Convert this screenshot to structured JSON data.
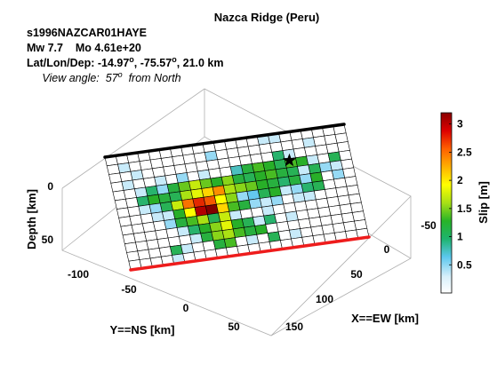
{
  "chart_data": {
    "type": "heatmap",
    "title": "Nazca Ridge (Peru)",
    "event_id": "s1996NAZCAR01HAYE",
    "magnitude_line": "Mw 7.7    Mo 4.61e+20",
    "location_prefix": "Lat/Lon/Dep: -14.97",
    "location_lon": ", -75.57",
    "location_dep": ", 21.0 km",
    "degree_mark": "o",
    "view_prefix": "View angle:  57",
    "view_suffix": "  from North",
    "xlabel": "X==EW [km]",
    "ylabel": "Y==NS [km]",
    "zlabel": "Depth [km]",
    "colorbar_label": "Slip [m]",
    "x_ticks": [
      "-50",
      "0",
      "50",
      "100",
      "150"
    ],
    "y_ticks": [
      "-100",
      "-50",
      "0",
      "50"
    ],
    "z_ticks": [
      "0",
      "50"
    ],
    "colorbar_ticks": [
      "0.5",
      "1",
      "1.5",
      "2",
      "2.5",
      "3"
    ],
    "colorbar_range": [
      0,
      3.2
    ],
    "grid_rows": 13,
    "grid_cols": 22,
    "slip": [
      [
        0,
        0,
        0,
        0,
        0,
        0,
        0,
        0,
        0,
        0,
        0,
        0,
        0,
        0,
        0.3,
        0.3,
        0,
        0,
        0,
        0,
        0,
        0
      ],
      [
        0,
        0.3,
        0,
        0,
        0,
        0,
        0,
        0,
        0,
        0.4,
        0,
        0,
        0,
        0,
        0,
        0,
        0,
        0,
        0.3,
        0,
        0,
        0
      ],
      [
        0,
        0,
        0.3,
        0,
        0,
        0,
        0,
        0,
        0,
        0,
        0,
        0,
        0,
        0,
        0,
        0.8,
        0.3,
        0,
        0,
        0,
        0,
        0
      ],
      [
        0,
        0.3,
        0,
        0,
        0.3,
        0,
        0.4,
        0,
        0.3,
        0,
        0,
        0.6,
        1.0,
        1.2,
        1.1,
        0.9,
        1.2,
        1.1,
        0.3,
        0,
        0.9,
        0
      ],
      [
        0,
        0,
        0.3,
        0.8,
        0.4,
        1.0,
        1.3,
        1.6,
        1.3,
        1.1,
        1.4,
        1.0,
        0.9,
        1.1,
        1.2,
        1.0,
        0.9,
        0.3,
        0.9,
        0.4,
        0.3,
        0
      ],
      [
        0,
        0,
        0.8,
        1.1,
        1.0,
        0.9,
        1.5,
        1.7,
        2.0,
        2.3,
        1.5,
        1.4,
        1.3,
        1.1,
        1.0,
        0.8,
        1.0,
        0.4,
        1.1,
        0,
        0.4,
        0
      ],
      [
        0,
        0,
        0.3,
        0.4,
        0.9,
        1.6,
        2.4,
        2.7,
        2.5,
        1.8,
        1.4,
        0.4,
        0.5,
        0.9,
        1.1,
        0.3,
        0.4,
        0.8,
        0.9,
        0,
        0,
        0
      ],
      [
        0,
        0,
        0,
        0.3,
        0.3,
        1.1,
        1.8,
        3.0,
        3.2,
        2.0,
        1.2,
        1.0,
        0.4,
        0.3,
        0.4,
        0,
        0.3,
        0.3,
        0,
        0,
        0,
        0
      ],
      [
        0,
        0,
        0,
        0,
        0.4,
        1.0,
        1.2,
        1.5,
        0.9,
        1.6,
        0.3,
        0,
        0,
        0.3,
        0,
        0,
        0,
        0,
        0,
        0,
        0,
        0
      ],
      [
        0,
        0,
        0,
        0,
        0,
        0.3,
        0.8,
        1.1,
        1.4,
        1.7,
        1.1,
        0.9,
        0.3,
        0.8,
        0,
        0.3,
        0,
        0,
        0,
        0,
        0,
        0
      ],
      [
        0,
        0,
        0,
        0,
        0,
        0,
        0.3,
        1.0,
        1.4,
        1.5,
        1.2,
        1.0,
        1.1,
        0,
        0,
        0,
        0,
        0,
        0,
        0,
        0,
        0
      ],
      [
        0,
        0,
        0,
        0,
        0.9,
        0.3,
        0,
        0,
        1.0,
        1.2,
        0,
        0.3,
        0,
        0.9,
        0,
        0.3,
        0,
        0,
        0,
        0,
        0,
        0
      ],
      [
        0,
        0,
        0,
        0,
        0.3,
        0,
        0,
        0,
        0,
        0,
        0,
        0,
        0,
        0,
        0,
        0,
        0,
        0,
        0,
        0,
        0,
        0
      ]
    ],
    "hypocenter": {
      "row": 3.2,
      "col": 16.4
    },
    "colors": {
      "background": "#ffffff",
      "grid_line": "#000000",
      "top_edge": "#000000",
      "bottom_edge": "#ee1c1c",
      "hypocenter": "#000000"
    }
  }
}
